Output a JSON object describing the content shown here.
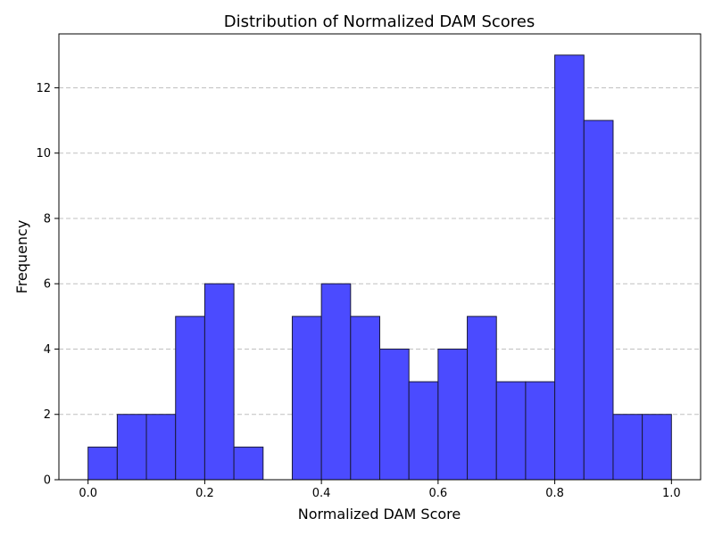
{
  "chart_data": {
    "type": "bar",
    "title": "Distribution of Normalized DAM Scores",
    "xlabel": "Normalized DAM Score",
    "ylabel": "Frequency",
    "bin_edges": [
      0.0,
      0.05,
      0.1,
      0.15,
      0.2,
      0.25,
      0.3,
      0.35,
      0.4,
      0.45,
      0.5,
      0.55,
      0.6,
      0.65,
      0.7,
      0.75,
      0.8,
      0.85,
      0.9,
      0.95,
      1.0
    ],
    "values": [
      1,
      2,
      2,
      5,
      6,
      1,
      0,
      5,
      6,
      5,
      4,
      3,
      4,
      5,
      3,
      3,
      13,
      11,
      2,
      2
    ],
    "xlim": [
      -0.05,
      1.05
    ],
    "ylim": [
      0,
      13.65
    ],
    "xticks": [
      0.0,
      0.2,
      0.4,
      0.6,
      0.8,
      1.0
    ],
    "xtick_labels": [
      "0.0",
      "0.2",
      "0.4",
      "0.6",
      "0.8",
      "1.0"
    ],
    "yticks": [
      0,
      2,
      4,
      6,
      8,
      10,
      12
    ],
    "ytick_labels": [
      "0",
      "2",
      "4",
      "6",
      "8",
      "10",
      "12"
    ],
    "grid": "y-dashed",
    "bar_color": "#4b4bff",
    "edge_color": "#1a1a3a"
  }
}
